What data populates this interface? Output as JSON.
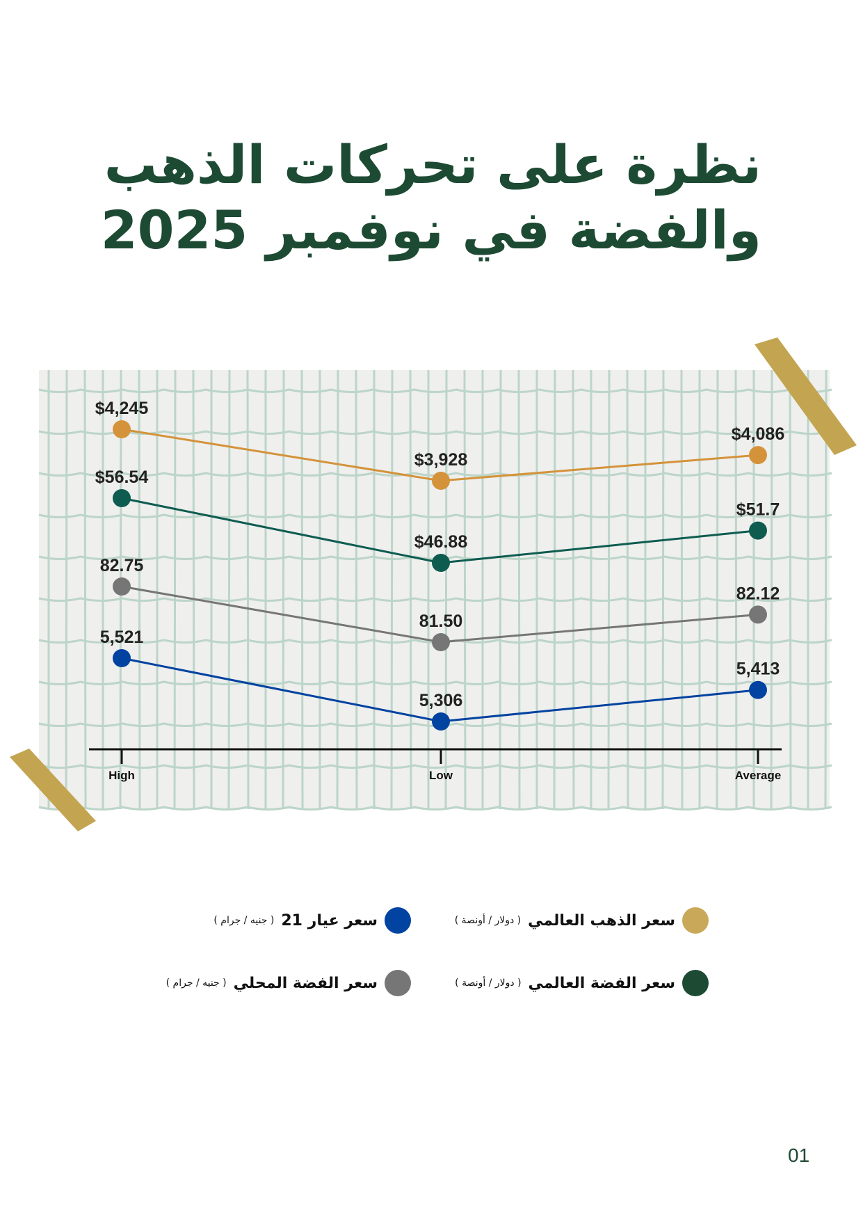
{
  "title": {
    "line1": "نظرة على تحركات الذهب",
    "line2": "والفضة في نوفمبر 2025"
  },
  "chart_data": {
    "type": "line",
    "categories": [
      "High",
      "Low",
      "Average"
    ],
    "series": [
      {
        "name": "سعر الذهب العالمي",
        "unit": "( دولار / أونصة )",
        "color": "#d4933a",
        "legend_color": "#c9a85a",
        "values": [
          4245,
          3928,
          4086
        ],
        "labels": [
          "$4,245",
          "$3,928",
          "$4,086"
        ]
      },
      {
        "name": "سعر الفضة العالمي",
        "unit": "( دولار / أونصة )",
        "color": "#0e5c50",
        "legend_color": "#1c4a33",
        "values": [
          56.54,
          46.88,
          51.7
        ],
        "labels": [
          "$56.54",
          "$46.88",
          "$51.7"
        ]
      },
      {
        "name": "سعر الفضة المحلي",
        "unit": "( جنيه / جرام )",
        "color": "#767676",
        "legend_color": "#767676",
        "values": [
          82.75,
          81.5,
          82.12
        ],
        "labels": [
          "82.75",
          "81.50",
          "82.12"
        ]
      },
      {
        "name": "سعر عيار 21",
        "unit": "( جنيه / جرام )",
        "color": "#0043a0",
        "legend_color": "#0043a0",
        "values": [
          5521,
          5306,
          5413
        ],
        "labels": [
          "5,521",
          "5,306",
          "5,413"
        ]
      }
    ],
    "grid": true,
    "legend_placement": "bottom"
  },
  "page_number": "01"
}
